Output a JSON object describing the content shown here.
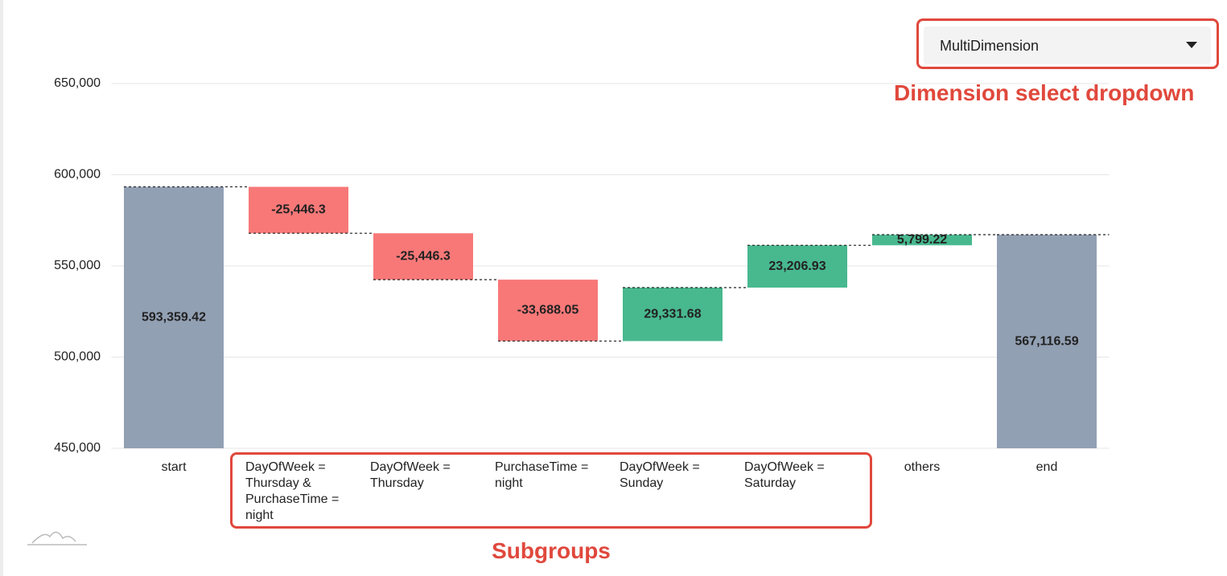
{
  "dropdown": {
    "selected": "MultiDimension"
  },
  "annotations": [
    {
      "label": "Dimension select dropdown"
    },
    {
      "label": "Subgroups"
    }
  ],
  "chart_data": {
    "type": "waterfall",
    "categories": [
      "start",
      "DayOfWeek = Thursday & PurchaseTime = night",
      "DayOfWeek = Thursday",
      "PurchaseTime = night",
      "DayOfWeek = Sunday",
      "DayOfWeek = Saturday",
      "others",
      "end"
    ],
    "values": [
      593359.42,
      -25446.3,
      -25446.3,
      -33688.05,
      29331.68,
      23206.93,
      5799.22,
      567116.59
    ],
    "value_labels": [
      "593,359.42",
      "-25,446.3",
      "-25,446.3",
      "-33,688.05",
      "29,331.68",
      "23,206.93",
      "5,799.22",
      "567,116.59"
    ],
    "total_color": "#8c9bb0",
    "decrease_color": "#f87171",
    "increase_color": "#3eb489",
    "ylim": [
      450000,
      650000
    ],
    "yticks": [
      {
        "value": 450000,
        "label": "450,000"
      },
      {
        "value": 500000,
        "label": "500,000"
      },
      {
        "value": 550000,
        "label": "550,000"
      },
      {
        "value": 600000,
        "label": "600,000"
      },
      {
        "value": 650000,
        "label": "650,000"
      }
    ],
    "grid": true
  }
}
